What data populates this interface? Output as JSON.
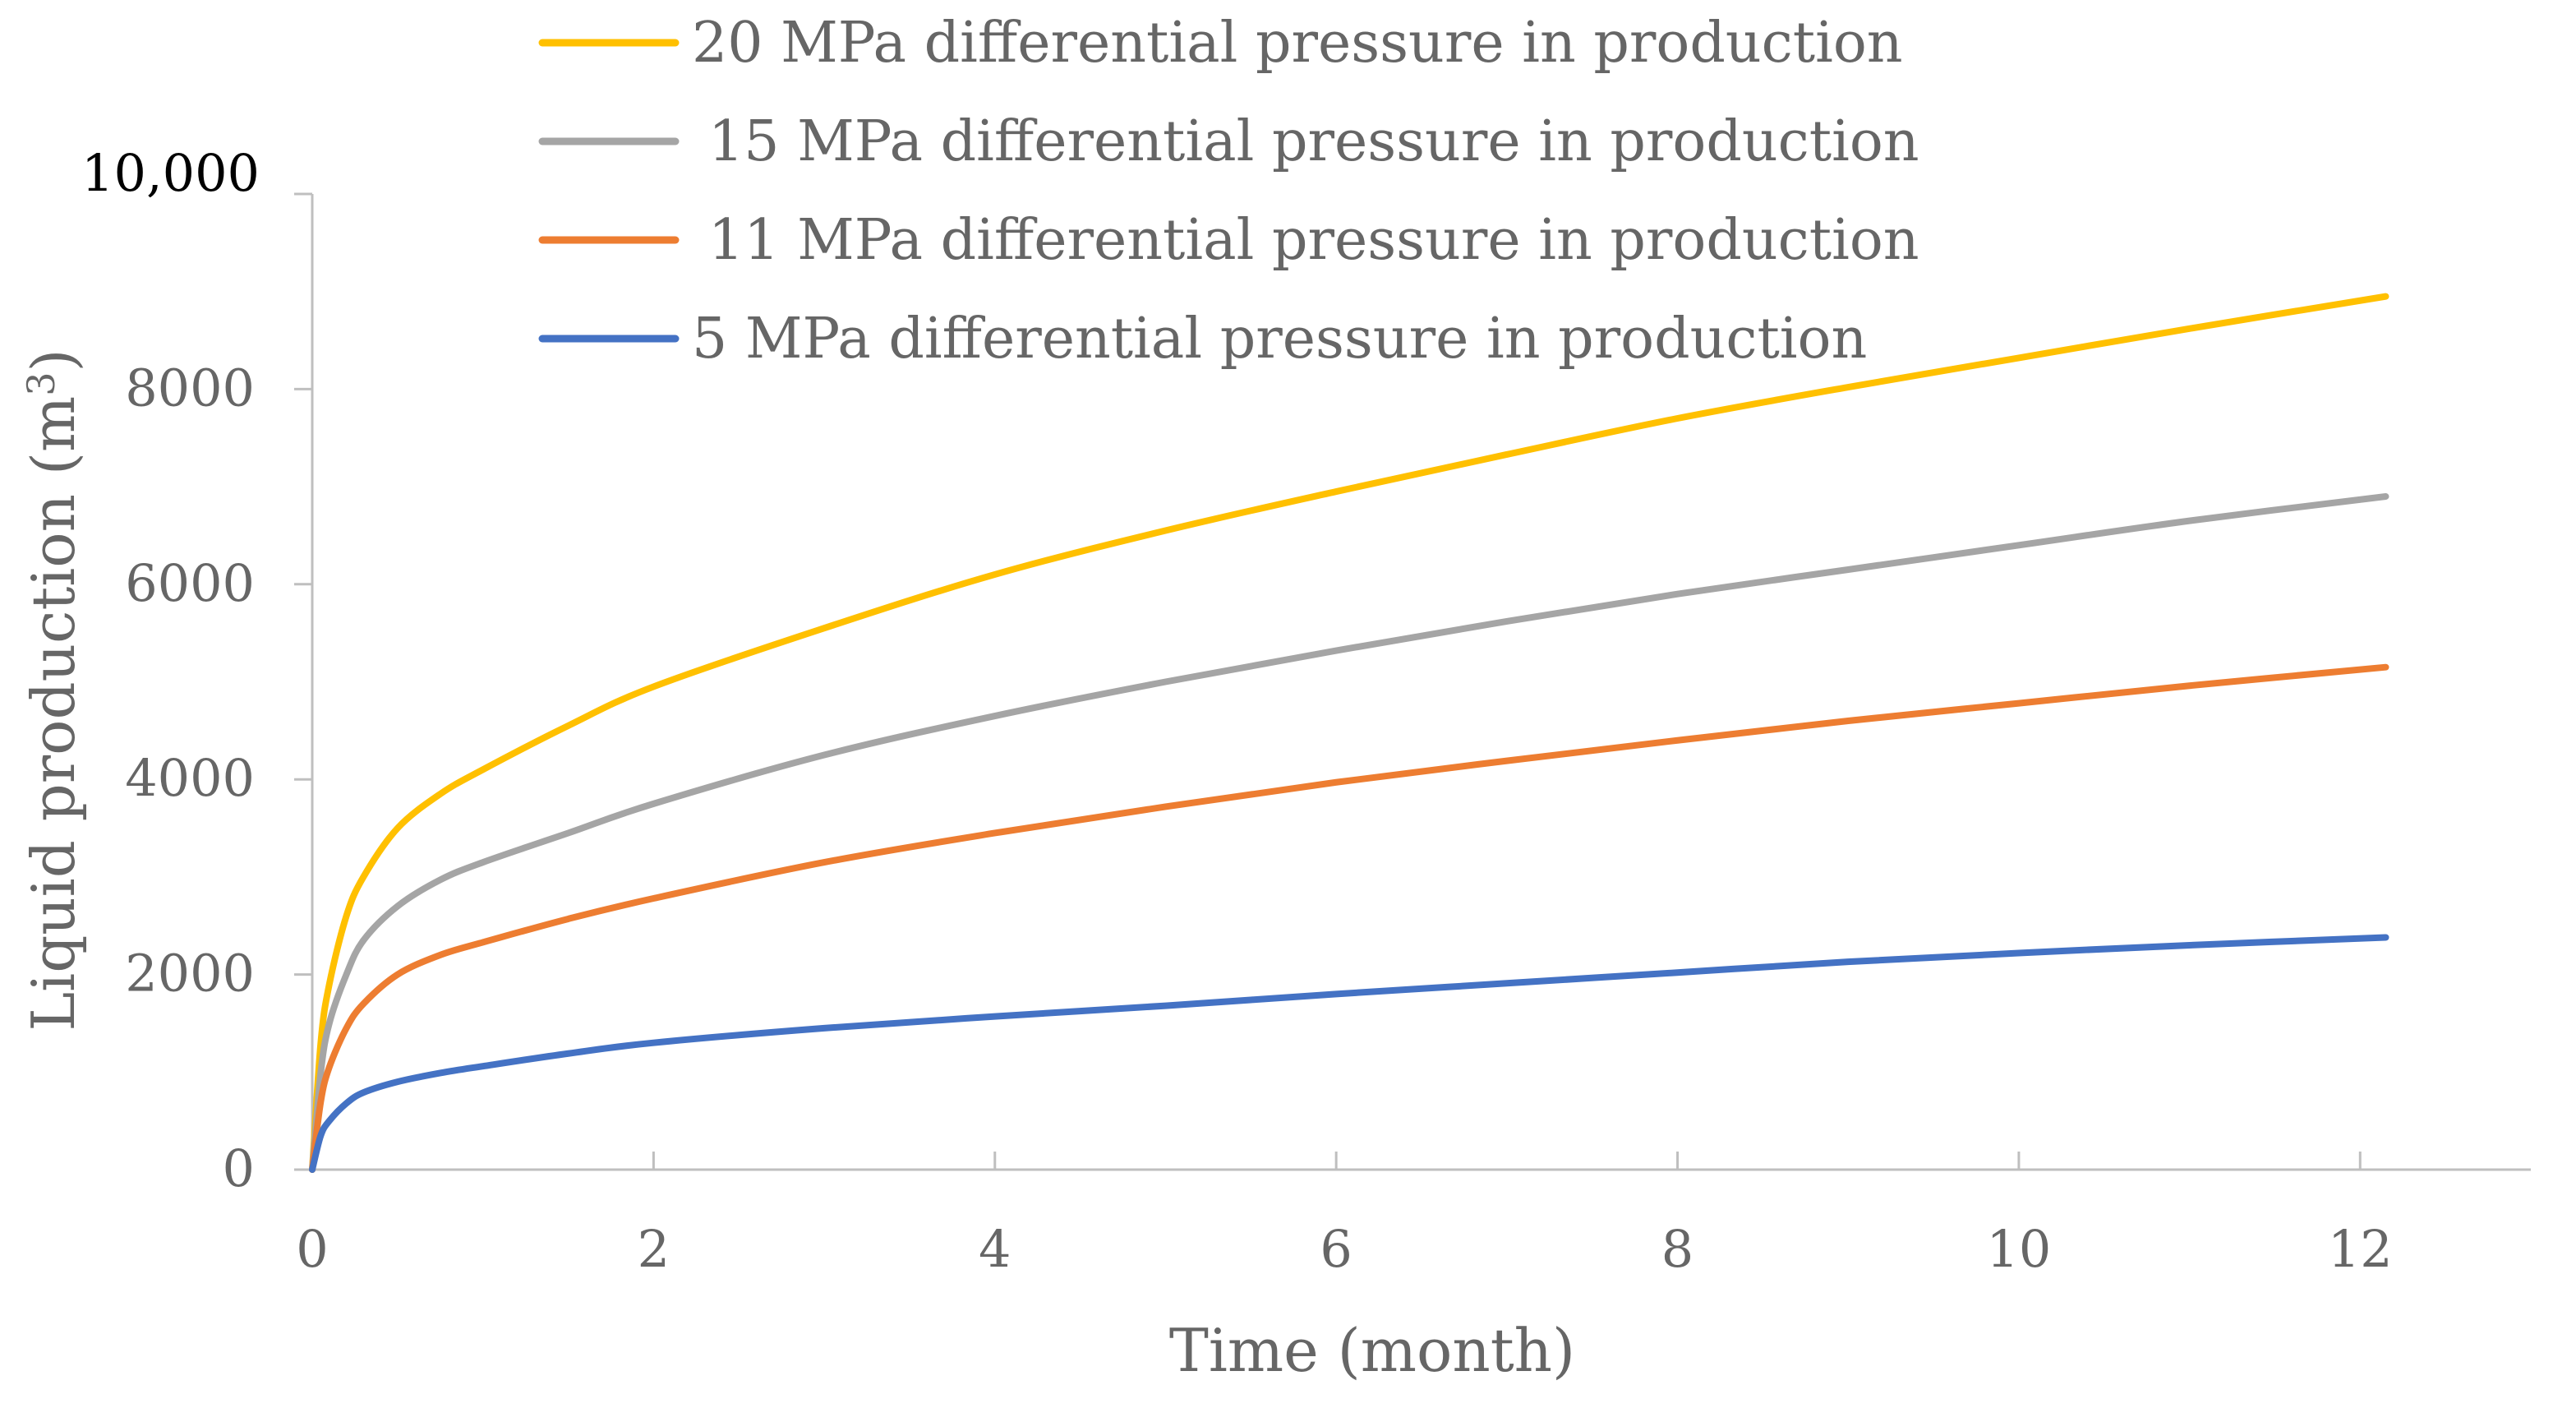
{
  "chart_data": {
    "type": "line",
    "title": "",
    "xlabel": "Time (month)",
    "ylabel": "Liquid production (m",
    "ylabel_superscript": "3",
    "ylabel_close": ")",
    "xlim": [
      0,
      13
    ],
    "ylim": [
      0,
      10000
    ],
    "x_ticks": [
      0,
      2,
      4,
      6,
      8,
      10,
      12
    ],
    "y_ticks": [
      {
        "value": 0,
        "label": "0"
      },
      {
        "value": 2000,
        "label": "2000"
      },
      {
        "value": 4000,
        "label": "4000"
      },
      {
        "value": 6000,
        "label": "6000"
      },
      {
        "value": 8000,
        "label": "8000"
      },
      {
        "value": 10000,
        "label": "10,000"
      }
    ],
    "grid": false,
    "legend_position": "top",
    "x": [
      0,
      0.05,
      0.1,
      0.2,
      0.3,
      0.5,
      0.75,
      1,
      1.5,
      2,
      3,
      4,
      5,
      6,
      7,
      8,
      9,
      10,
      11,
      12.15
    ],
    "series": [
      {
        "name": "20 MPa differential pressure in production",
        "color": "#FFC000",
        "values": [
          0,
          1300,
          1900,
          2600,
          3000,
          3500,
          3850,
          4100,
          4550,
          4950,
          5550,
          6100,
          6550,
          6950,
          7330,
          7700,
          8020,
          8320,
          8620,
          8950
        ]
      },
      {
        "name": "15 MPa differential pressure in production",
        "color": "#A5A5A5",
        "values": [
          0,
          1000,
          1500,
          2000,
          2350,
          2700,
          2970,
          3150,
          3450,
          3750,
          4250,
          4650,
          5000,
          5320,
          5620,
          5900,
          6150,
          6400,
          6650,
          6900
        ]
      },
      {
        "name": "11 MPa differential pressure in production",
        "color": "#ED7D31",
        "values": [
          0,
          700,
          1050,
          1450,
          1700,
          2000,
          2200,
          2330,
          2570,
          2780,
          3150,
          3450,
          3720,
          3970,
          4190,
          4400,
          4600,
          4780,
          4960,
          5150
        ]
      },
      {
        "name": "5 MPa differential pressure in production",
        "color": "#4472C4",
        "values": [
          0,
          350,
          500,
          680,
          790,
          900,
          990,
          1060,
          1190,
          1300,
          1450,
          1570,
          1680,
          1800,
          1910,
          2020,
          2130,
          2220,
          2300,
          2380
        ]
      }
    ]
  }
}
